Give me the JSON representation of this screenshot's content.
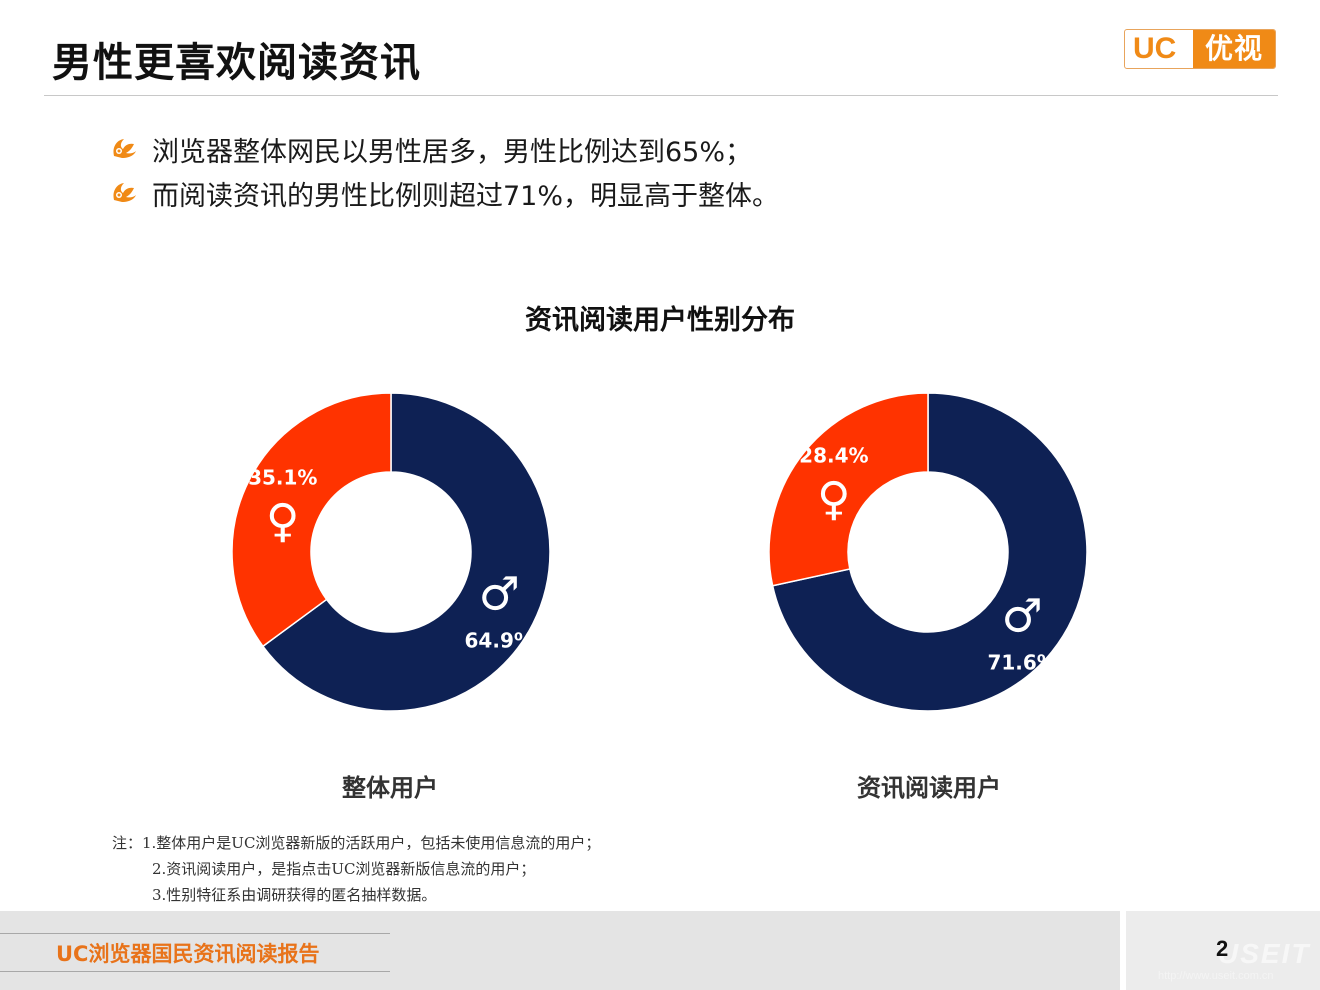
{
  "page": {
    "title": "男性更喜欢阅读资讯",
    "logo": {
      "latin": "UC",
      "cn": "优视"
    },
    "bullets": [
      "浏览器整体网民以男性居多，男性比例达到65%；",
      "而阅读资讯的男性比例则超过71%，明显高于整体。"
    ],
    "notes": [
      "注：1.整体用户是UC浏览器新版的活跃用户，包括未使用信息流的用户；",
      "2.资讯阅读用户，是指点击UC浏览器新版信息流的用户；",
      "3.性别特征系由调研获得的匿名抽样数据。"
    ],
    "footer": {
      "report_title": "UC浏览器国民资讯阅读报告",
      "page_number": "2"
    },
    "watermark": {
      "text": "USEIT",
      "url": "http://www.useit.com.cn"
    }
  },
  "colors": {
    "male": "#0e2154",
    "female": "#ff3300",
    "accent": "#f08a16"
  },
  "chart_data": {
    "type": "pie",
    "title": "资讯阅读用户性别分布",
    "charts": [
      {
        "label": "整体用户",
        "slices": [
          {
            "name": "male",
            "symbol": "♂",
            "value": 64.9,
            "label": "64.9%"
          },
          {
            "name": "female",
            "symbol": "♀",
            "value": 35.1,
            "label": "35.1%"
          }
        ]
      },
      {
        "label": "资讯阅读用户",
        "slices": [
          {
            "name": "male",
            "symbol": "♂",
            "value": 71.6,
            "label": "71.6%"
          },
          {
            "name": "female",
            "symbol": "♀",
            "value": 28.4,
            "label": "28.4%"
          }
        ]
      }
    ]
  }
}
